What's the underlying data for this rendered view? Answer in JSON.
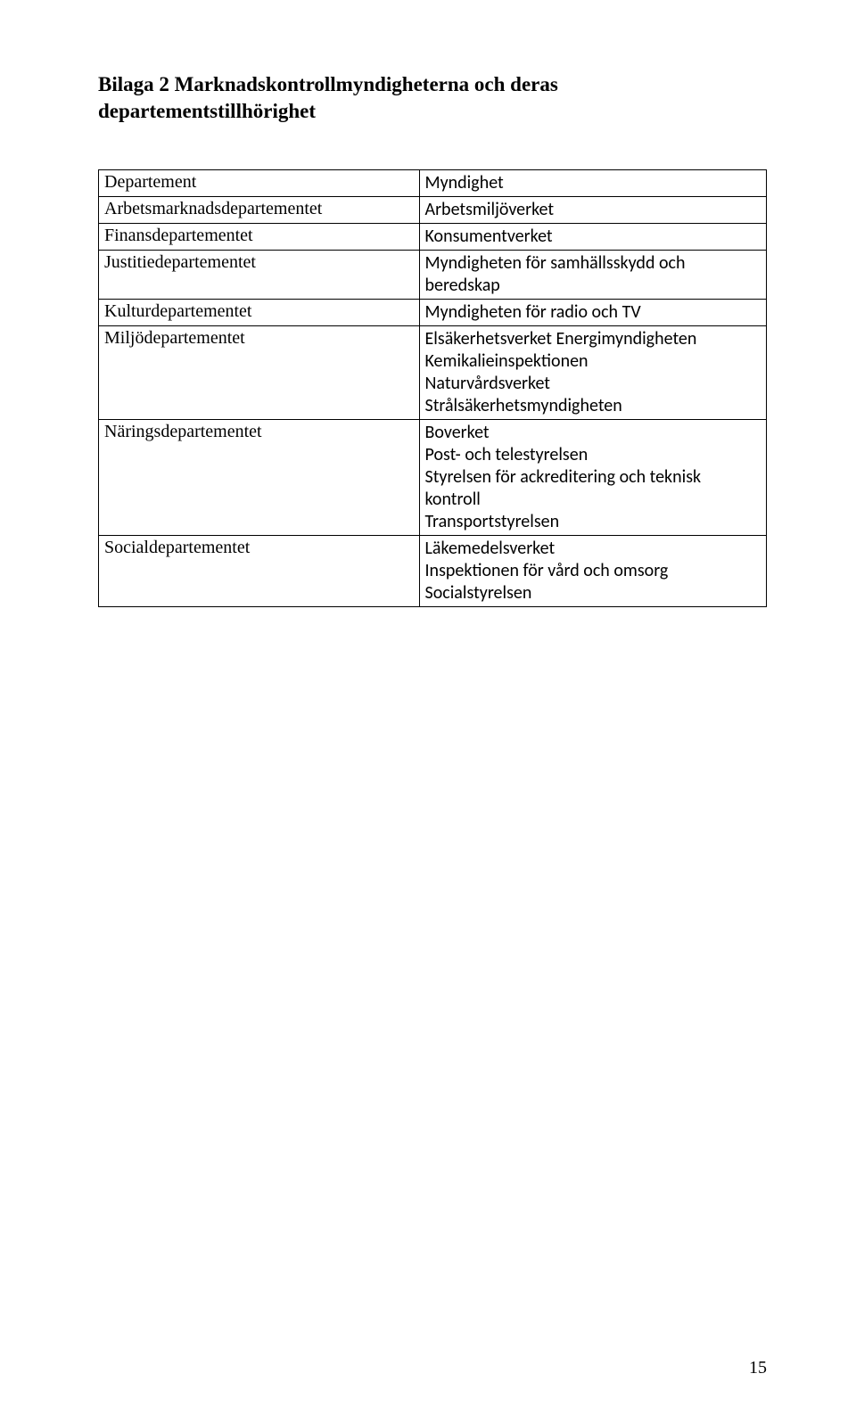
{
  "title": "Bilaga 2  Marknadskontrollmyndigheterna och deras departementstillhörighet",
  "table": {
    "header": {
      "left": "Departement",
      "right": "Myndighet"
    },
    "rows": [
      {
        "left": "Arbetsmarknadsdepartementet",
        "right": "Arbetsmiljöverket"
      },
      {
        "left": "Finansdepartementet",
        "right": "Konsumentverket"
      },
      {
        "left": "Justitiedepartementet",
        "right": "Myndigheten för samhällsskydd och beredskap"
      },
      {
        "left": "Kulturdepartementet",
        "right": "Myndigheten för radio och TV"
      },
      {
        "left": "Miljödepartementet",
        "right": "Elsäkerhetsverket Energimyndigheten\nKemikalieinspektionen\nNaturvårdsverket\nStrålsäkerhetsmyndigheten"
      },
      {
        "left": "Näringsdepartementet",
        "right": "Boverket\nPost- och telestyrelsen\nStyrelsen för ackreditering och teknisk kontroll\nTransportstyrelsen"
      },
      {
        "left": "Socialdepartementet",
        "right": "Läkemedelsverket\nInspektionen för vård och omsorg\nSocialstyrelsen"
      }
    ]
  },
  "pageNumber": "15"
}
